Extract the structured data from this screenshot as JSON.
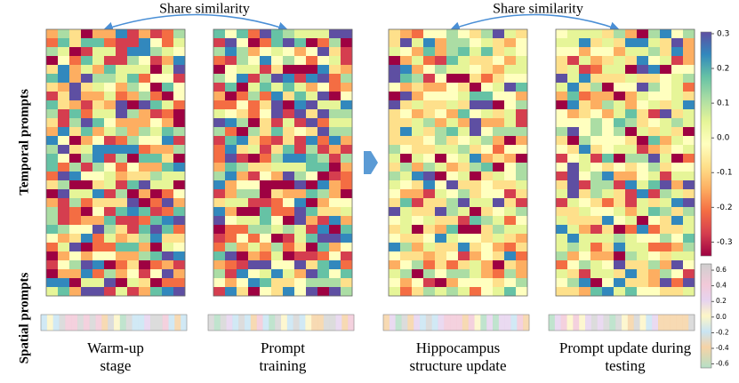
{
  "temporal_label": "Temporal prompts",
  "spatial_label": "Spatial prompts",
  "similarity_labels": [
    "Share similarity",
    "Share similarity"
  ],
  "panels": [
    {
      "caption": [
        "Warm-up",
        "stage"
      ]
    },
    {
      "caption": [
        "Prompt",
        "training"
      ]
    },
    {
      "caption": [
        "Hippocampus",
        "structure update"
      ]
    },
    {
      "caption": [
        "Prompt update during",
        "testing"
      ]
    }
  ],
  "colorbars": [
    {
      "lim": [
        -0.34,
        0.305
      ],
      "ticks": [
        0.3,
        0.2,
        0.1,
        {
          "value": 0,
          "label": "0.0"
        },
        -0.1,
        -0.2,
        -0.3
      ]
    },
    {
      "lim": [
        -0.65,
        0.68
      ],
      "ticks": [
        0.6,
        0.4,
        0.2,
        {
          "value": 0,
          "label": "0.0"
        },
        -0.2,
        -0.4,
        -0.6
      ]
    }
  ]
}
